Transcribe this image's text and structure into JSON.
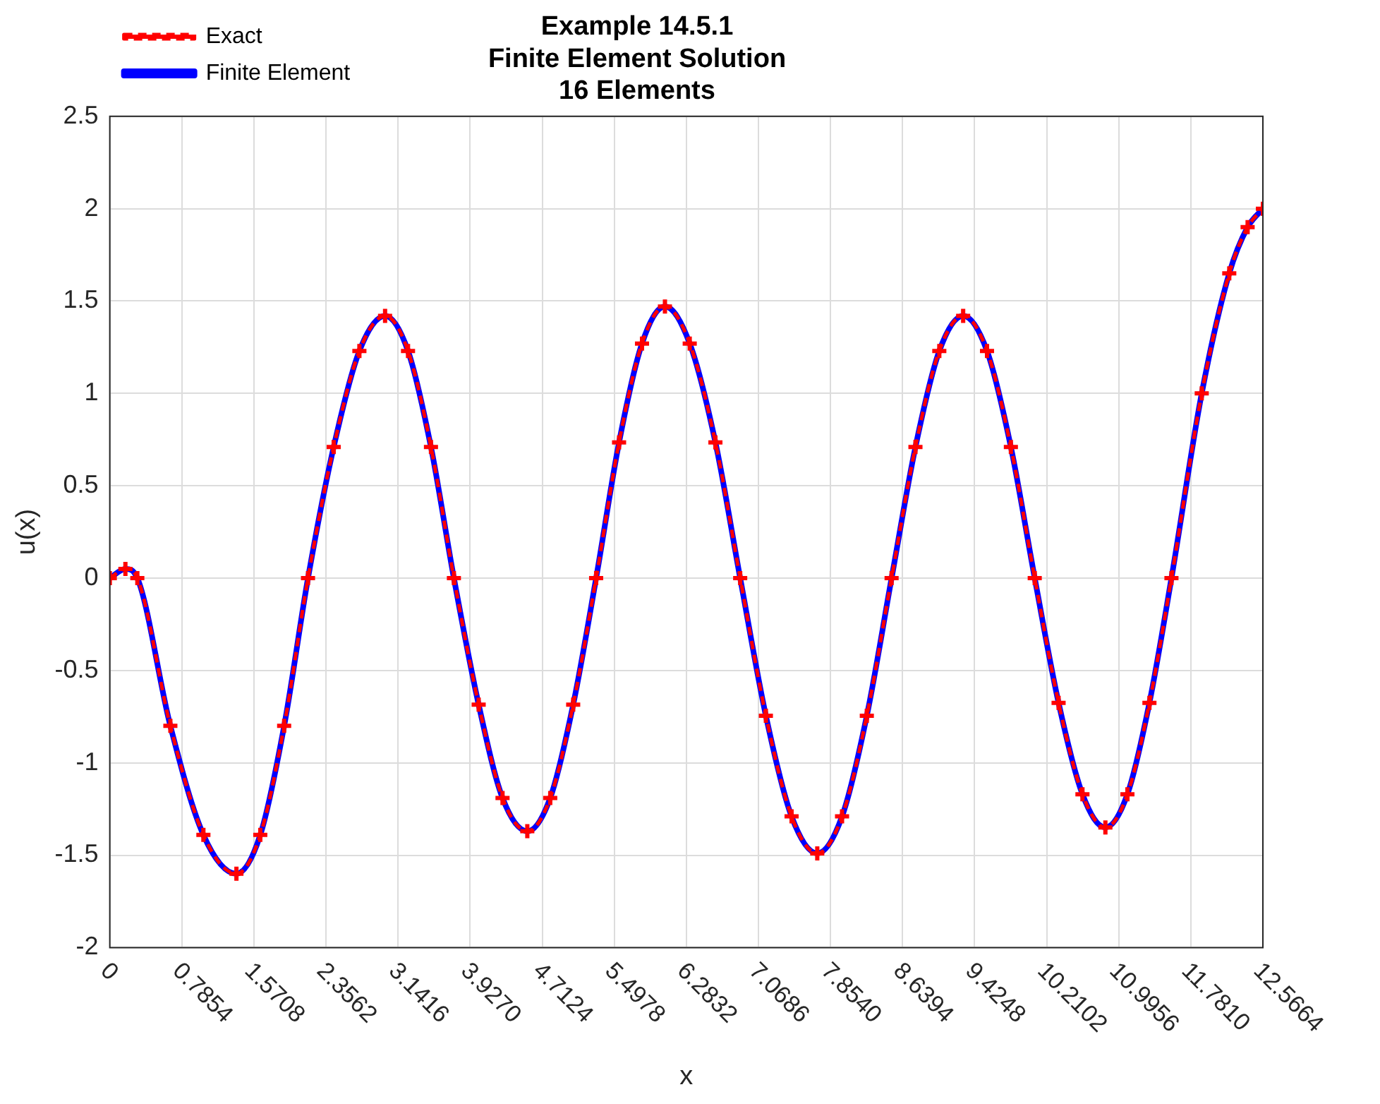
{
  "chart_data": {
    "type": "line",
    "title": "Example 14.5.1\nFinite Element Solution\n16 Elements",
    "xlabel": "x",
    "ylabel": "u(x)",
    "x": [
      0,
      0.17,
      0.3,
      0.66,
      1.02,
      1.38,
      1.64,
      1.9,
      2.16,
      2.44,
      2.72,
      3.0,
      3.25,
      3.5,
      3.75,
      4.02,
      4.28,
      4.55,
      4.8,
      5.05,
      5.3,
      5.55,
      5.8,
      6.05,
      6.32,
      6.6,
      6.87,
      7.15,
      7.43,
      7.71,
      7.98,
      8.25,
      8.52,
      8.78,
      9.04,
      9.3,
      9.56,
      9.82,
      10.08,
      10.34,
      10.6,
      10.85,
      11.09,
      11.33,
      11.57,
      11.9,
      12.2,
      12.4,
      12.5664
    ],
    "series": [
      {
        "name": "Exact",
        "color": "#ff0000",
        "marker": "cross",
        "line_style": "dashed",
        "values": [
          0,
          0.05,
          0,
          -0.8,
          -1.39,
          -1.6,
          -1.39,
          -0.8,
          0,
          0.71,
          1.23,
          1.42,
          1.23,
          0.71,
          0,
          -0.685,
          -1.19,
          -1.37,
          -1.19,
          -0.685,
          0,
          0.735,
          1.27,
          1.47,
          1.27,
          0.735,
          0,
          -0.745,
          -1.29,
          -1.49,
          -1.29,
          -0.745,
          0,
          0.71,
          1.23,
          1.42,
          1.23,
          0.71,
          0,
          -0.675,
          -1.17,
          -1.35,
          -1.17,
          -0.675,
          0,
          1.0,
          1.65,
          1.9,
          2.0
        ]
      },
      {
        "name": "Finite Element",
        "color": "#0000ff",
        "marker": "none",
        "line_style": "solid",
        "values": [
          0,
          0.05,
          0,
          -0.8,
          -1.39,
          -1.6,
          -1.39,
          -0.8,
          0,
          0.71,
          1.23,
          1.42,
          1.23,
          0.71,
          0,
          -0.685,
          -1.19,
          -1.37,
          -1.19,
          -0.685,
          0,
          0.735,
          1.27,
          1.47,
          1.27,
          0.735,
          0,
          -0.745,
          -1.29,
          -1.49,
          -1.29,
          -0.745,
          0,
          0.71,
          1.23,
          1.42,
          1.23,
          0.71,
          0,
          -0.675,
          -1.17,
          -1.35,
          -1.17,
          -0.675,
          0,
          1.0,
          1.65,
          1.9,
          2.0
        ]
      }
    ],
    "xlim": [
      0,
      12.5664
    ],
    "xticks": [
      0,
      0.7854,
      1.5708,
      2.3562,
      3.1416,
      {
        "value": 3.927,
        "label": "3.9270"
      },
      4.7124,
      5.4978,
      6.2832,
      7.0686,
      {
        "value": 7.854,
        "label": "7.8540"
      },
      8.6394,
      9.4248,
      10.2102,
      10.9956,
      {
        "value": 11.781,
        "label": "11.7810"
      },
      12.5664
    ],
    "ylim": [
      -2,
      2.5
    ],
    "yticks": [
      -2,
      -1.5,
      -1,
      -0.5,
      0,
      0.5,
      1,
      1.5,
      2,
      2.5
    ],
    "grid": true,
    "legend": "top left"
  }
}
